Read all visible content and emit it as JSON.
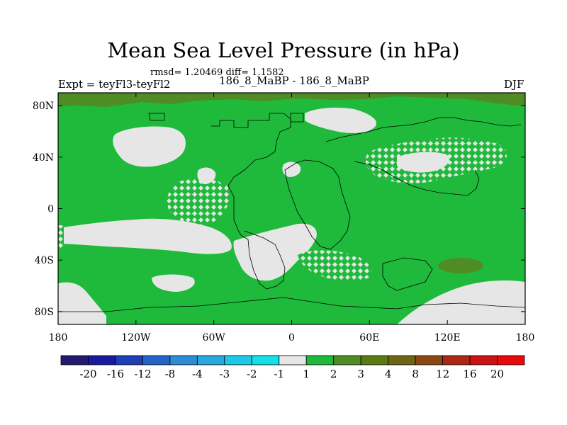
{
  "title": "Mean Sea Level Pressure (in hPa)",
  "stats": "rmsd= 1.20469 diff= 1.1582",
  "experiment": "Expt = teyFl3-teyFl2",
  "subtitle": "186_8_MaBP - 186_8_MaBP",
  "season": "DJF",
  "chart_data": {
    "type": "heatmap",
    "x_axis": {
      "ticks": [
        "180",
        "120W",
        "60W",
        "0",
        "60E",
        "120E",
        "180"
      ],
      "range": [
        -180,
        180
      ]
    },
    "y_axis": {
      "ticks": [
        "80N",
        "40N",
        "0",
        "40S",
        "80S"
      ],
      "range": [
        -90,
        90
      ]
    },
    "colorbar": {
      "labels": [
        "-20",
        "-16",
        "-12",
        "-8",
        "-4",
        "-3",
        "-2",
        "-1",
        "1",
        "2",
        "3",
        "4",
        "8",
        "12",
        "16",
        "20"
      ],
      "colors": [
        "#23196e",
        "#1a1a9e",
        "#1f40b4",
        "#2564c8",
        "#2e8cd2",
        "#28a8dc",
        "#1ec8e6",
        "#14e0e6",
        "#e6e6e6",
        "#1fba3c",
        "#4f8c24",
        "#5a7a14",
        "#6e6414",
        "#8c4614",
        "#aa2814",
        "#c81414",
        "#e60a0a"
      ]
    },
    "dominant_range": "1 to 2 hPa",
    "notes": "Mostly green (1-2 hPa) field with light-grey (-1 to 1) patches over the northeast Pacific, North Atlantic, tropical and southern Atlantic, Asia, and Antarctic coast; dark green (3-4) along the Arctic edge and a patch in the southern Indian/Pacific Ocean near 120E 40S."
  }
}
